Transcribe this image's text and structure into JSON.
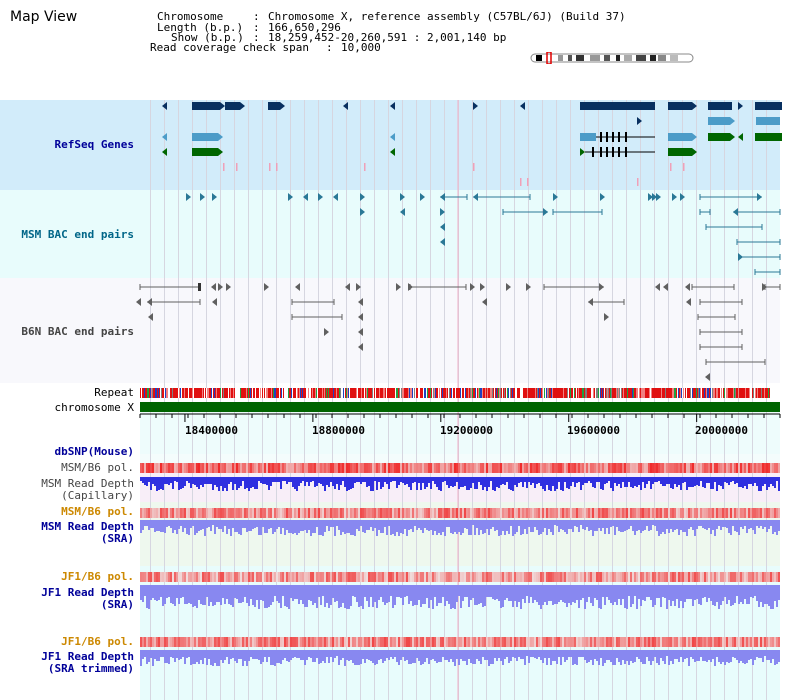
{
  "title": "Map View",
  "info": {
    "chromosome_key": "Chromosome",
    "chromosome_val": "Chromosome X, reference assembly (C57BL/6J) (Build 37)",
    "length_key": "Length (b.p.)",
    "length_val": "166,650,296",
    "show_key": "Show (b.p.)",
    "show_val": "18,259,452-20,260,591 : 2,001,140 bp",
    "span_key": "Read coverage check span",
    "span_val": "10,000"
  },
  "tracks": {
    "refseq": {
      "label": "RefSeq Genes",
      "color": "#000099"
    },
    "msm_bac": {
      "label": "MSM BAC end pairs",
      "color": "#006688"
    },
    "b6n_bac": {
      "label": "B6N BAC end pairs",
      "color": "#444444"
    },
    "repeat": {
      "label": "Repeat",
      "color": "#000000"
    },
    "chromosome": {
      "label": "chromosome X",
      "color": "#000000"
    },
    "dbsnp": {
      "label": "dbSNP(Mouse)",
      "color": "#000099"
    },
    "msm_b6_pol_cap": {
      "label": "MSM/B6 pol.",
      "color": "#444444"
    },
    "msm_depth_cap": {
      "label1": "MSM Read Depth",
      "label2": "(Capillary)",
      "color": "#444444"
    },
    "msm_b6_pol_sra": {
      "label": "MSM/B6 pol.",
      "color": "#cc8800"
    },
    "msm_depth_sra": {
      "label1": "MSM Read Depth",
      "label2": "(SRA)",
      "color": "#000099"
    },
    "jf1_b6_pol": {
      "label": "JF1/B6 pol.",
      "color": "#cc8800"
    },
    "jf1_depth_sra": {
      "label1": "JF1 Read Depth",
      "label2": "(SRA)",
      "color": "#000099"
    },
    "jf1_b6_pol_2": {
      "label": "JF1/B6 pol.",
      "color": "#cc8800"
    },
    "jf1_depth_trim": {
      "label1": "JF1 Read Depth",
      "label2": "(SRA trimmed)",
      "color": "#000099"
    }
  },
  "axis": {
    "ticks": [
      "18400000",
      "18800000",
      "19200000",
      "19600000",
      "20000000"
    ],
    "tick_values": [
      18400000,
      18800000,
      19200000,
      19600000,
      20000000
    ],
    "range": [
      18259452,
      20260591
    ]
  },
  "colors": {
    "refseq_bg": "#d2ecfa",
    "bac_bg": "#e8fcfc",
    "b6n_bg": "#f8f8fc",
    "gene_dark": "#083060",
    "gene_light": "#4c9cc8",
    "gene_green": "#006600",
    "chrom_green": "#006400",
    "depth_blue": "#3030e0",
    "depth_blue_light": "#8888f0"
  }
}
